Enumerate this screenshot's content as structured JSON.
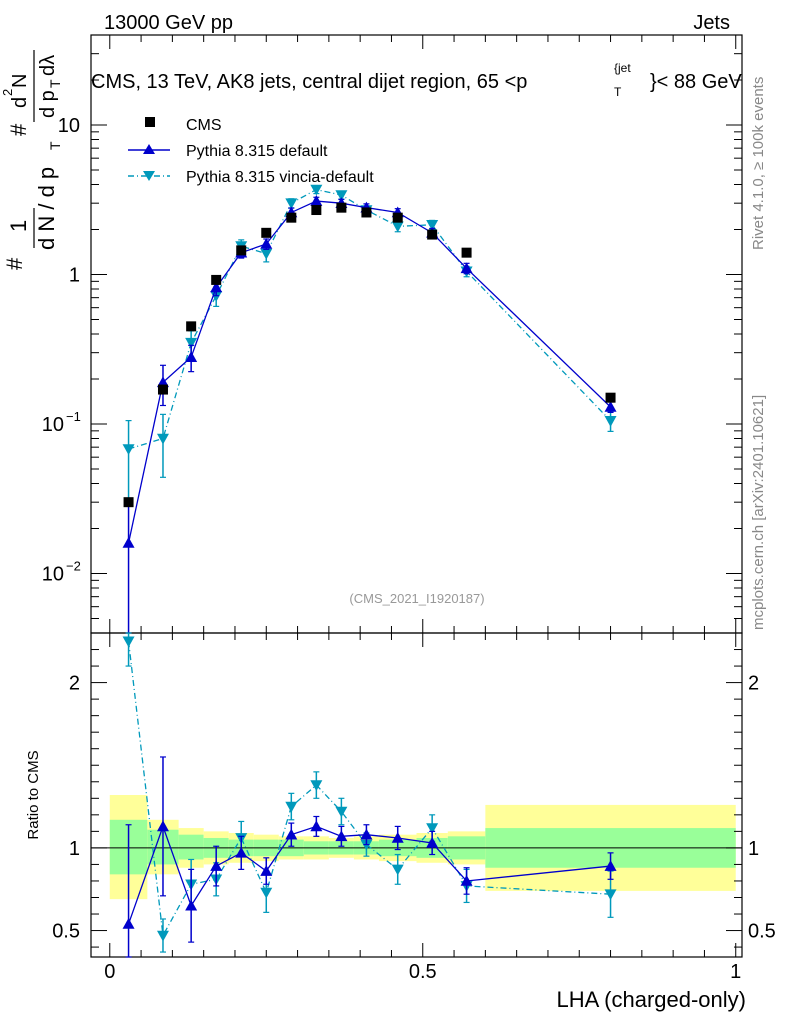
{
  "header": {
    "left": "13000 GeV pp",
    "right": "Jets"
  },
  "plot_title": {
    "main": "CMS, 13 TeV, AK8 jets, central dijet region, 65 <p",
    "sub": "T",
    "sup": "{jet",
    "close": "}< 88 GeV"
  },
  "side_labels": {
    "rivet": "Rivet 4.1.0, ≥ 100k events",
    "mcplots": "mcplots.cern.ch [arXiv:2401.10621]"
  },
  "analysis_id": "(CMS_2021_I1920187)",
  "y_axis_main_label": "1/N dN/dp_T dλ",
  "y_axis_ratio_label": "Ratio to CMS",
  "x_axis_label": "LHA (charged-only)",
  "colors": {
    "data": "#000000",
    "pythia_default": "#0000cc",
    "pythia_vincia": "#0099bb",
    "band_inner": "#99ff99",
    "band_outer": "#ffff99"
  },
  "chart_data": {
    "type": "line",
    "x_label": "LHA (charged-only)",
    "xlim": [
      -0.03,
      1.01
    ],
    "main_ylim": [
      0.004,
      40
    ],
    "main_yscale": "log",
    "main_y_ticks": [
      {
        "v": 0.01,
        "base": "10",
        "exp": "−2"
      },
      {
        "v": 0.1,
        "base": "10",
        "exp": "−1"
      },
      {
        "v": 1,
        "base": "1",
        "exp": ""
      },
      {
        "v": 10,
        "base": "10",
        "exp": ""
      }
    ],
    "ratio_ylim": [
      0.34,
      2.3
    ],
    "ratio_y_ticks": [
      "0.5",
      "1",
      "2"
    ],
    "x_ticks": [
      "0",
      "0.5",
      "1"
    ],
    "bins": [
      0.0,
      0.06,
      0.11,
      0.15,
      0.19,
      0.23,
      0.27,
      0.31,
      0.35,
      0.39,
      0.43,
      0.49,
      0.54,
      0.6,
      1.0
    ],
    "x": [
      0.03,
      0.085,
      0.13,
      0.17,
      0.21,
      0.25,
      0.29,
      0.33,
      0.37,
      0.41,
      0.46,
      0.515,
      0.57,
      0.8
    ],
    "series": [
      {
        "name": "CMS",
        "style": "markers",
        "values": [
          0.03,
          0.17,
          0.45,
          0.92,
          1.45,
          1.9,
          2.4,
          2.7,
          2.8,
          2.6,
          2.4,
          1.85,
          1.4,
          0.15
        ]
      },
      {
        "name": "Pythia 8.315 default",
        "style": "solid",
        "values": [
          0.016,
          0.19,
          0.28,
          0.82,
          1.4,
          1.6,
          2.6,
          3.1,
          3.0,
          2.8,
          2.6,
          1.9,
          1.1,
          0.13
        ],
        "err_rel": [
          0.95,
          0.3,
          0.2,
          0.12,
          0.08,
          0.08,
          0.07,
          0.06,
          0.06,
          0.06,
          0.06,
          0.07,
          0.08,
          0.08
        ],
        "ratio": [
          0.54,
          1.13,
          0.65,
          0.89,
          0.97,
          0.86,
          1.08,
          1.13,
          1.07,
          1.08,
          1.06,
          1.03,
          0.8,
          0.89
        ],
        "ratio_err": [
          0.6,
          0.42,
          0.22,
          0.12,
          0.1,
          0.08,
          0.07,
          0.06,
          0.06,
          0.06,
          0.07,
          0.07,
          0.08,
          0.08
        ]
      },
      {
        "name": "Pythia 8.315 vincia-default",
        "style": "dashdot",
        "values": [
          0.068,
          0.08,
          0.35,
          0.72,
          1.55,
          1.38,
          3.0,
          3.7,
          3.4,
          2.7,
          2.1,
          2.15,
          1.05,
          0.105
        ],
        "err_rel": [
          0.55,
          0.45,
          0.2,
          0.15,
          0.1,
          0.12,
          0.07,
          0.06,
          0.06,
          0.06,
          0.08,
          0.07,
          0.08,
          0.15
        ],
        "ratio": [
          2.25,
          0.47,
          0.78,
          0.81,
          1.06,
          0.73,
          1.25,
          1.38,
          1.22,
          1.02,
          0.87,
          1.12,
          0.77,
          0.72
        ],
        "ratio_err": [
          0.15,
          0.1,
          0.15,
          0.1,
          0.1,
          0.12,
          0.08,
          0.08,
          0.08,
          0.07,
          0.09,
          0.08,
          0.1,
          0.14
        ]
      }
    ],
    "ratio_band_inner": [
      [
        0.84,
        1.17
      ],
      [
        0.9,
        1.11
      ],
      [
        0.93,
        1.08
      ],
      [
        0.94,
        1.06
      ],
      [
        0.95,
        1.05
      ],
      [
        0.95,
        1.05
      ],
      [
        0.95,
        1.05
      ],
      [
        0.96,
        1.04
      ],
      [
        0.96,
        1.04
      ],
      [
        0.96,
        1.04
      ],
      [
        0.95,
        1.05
      ],
      [
        0.94,
        1.06
      ],
      [
        0.93,
        1.07
      ],
      [
        0.88,
        1.12
      ]
    ],
    "ratio_band_outer": [
      [
        0.69,
        1.32
      ],
      [
        0.84,
        1.17
      ],
      [
        0.88,
        1.12
      ],
      [
        0.9,
        1.1
      ],
      [
        0.91,
        1.09
      ],
      [
        0.92,
        1.08
      ],
      [
        0.93,
        1.07
      ],
      [
        0.93,
        1.07
      ],
      [
        0.94,
        1.06
      ],
      [
        0.93,
        1.07
      ],
      [
        0.92,
        1.08
      ],
      [
        0.91,
        1.09
      ],
      [
        0.9,
        1.1
      ],
      [
        0.74,
        1.26
      ]
    ],
    "legend_position": "top-left"
  }
}
